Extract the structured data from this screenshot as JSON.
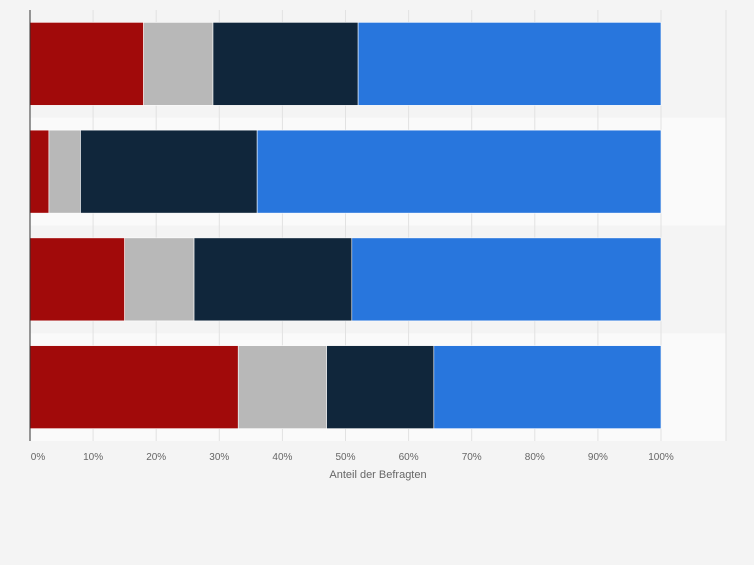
{
  "chart_data": {
    "type": "bar",
    "orientation": "horizontal",
    "stacked": true,
    "categories": [
      "",
      "",
      "",
      ""
    ],
    "series": [
      {
        "color": "#a10a0a",
        "values": [
          18,
          3,
          15,
          33
        ]
      },
      {
        "color": "#b8b8b8",
        "values": [
          11,
          5,
          11,
          14
        ]
      },
      {
        "color": "#10263b",
        "values": [
          23,
          28,
          25,
          17
        ]
      },
      {
        "color": "#2876dd",
        "values": [
          48,
          64,
          49,
          36
        ]
      }
    ],
    "xlabel": "Anteil der Befragten",
    "xlim": [
      0,
      100
    ],
    "x_ticks": [
      "0%",
      "10%",
      "20%",
      "30%",
      "40%",
      "50%",
      "60%",
      "70%",
      "80%",
      "90%",
      "100%"
    ],
    "grid": true,
    "legend": "none"
  }
}
